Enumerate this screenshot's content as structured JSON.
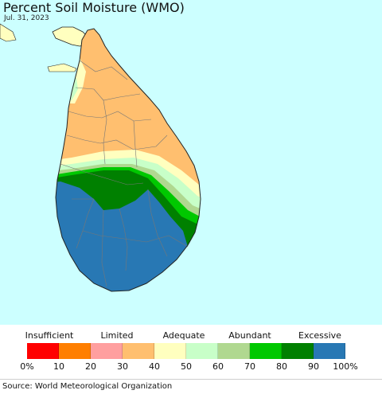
{
  "title": "Percent Soil Moisture (WMO)",
  "date": "Jul. 31, 2023",
  "legend": {
    "categories": [
      "Insufficient",
      "Limited",
      "Adequate",
      "Abundant",
      "Excessive"
    ],
    "colors": [
      "#ff0000",
      "#ff7f00",
      "#ff9f9f",
      "#ffbf6f",
      "#ffffbf",
      "#c8ffc8",
      "#b0d890",
      "#00c800",
      "#008000",
      "#2878b4"
    ],
    "ticks": [
      "0%",
      "10",
      "20",
      "30",
      "40",
      "50",
      "60",
      "70",
      "80",
      "90",
      "100%"
    ]
  },
  "source": "Source: World Meteorological Organization"
}
